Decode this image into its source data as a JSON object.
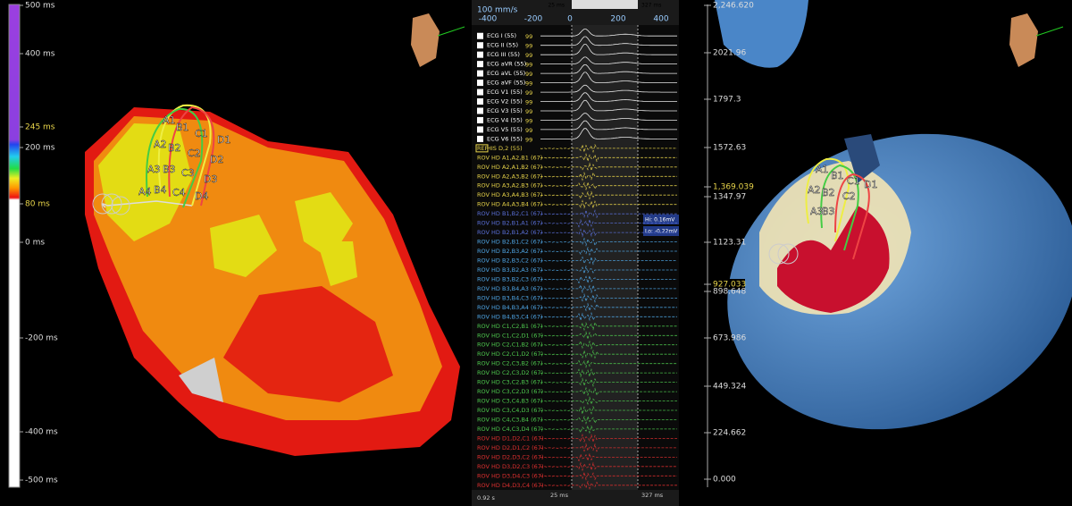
{
  "left_panel": {
    "scale_labels": [
      "500 ms",
      "400 ms",
      "245 ms",
      "200 ms",
      "80 ms",
      "0 ms",
      "-200 ms",
      "-400 ms",
      "-500 ms"
    ],
    "electrode_labels": [
      "A1",
      "B1",
      "C1",
      "D1",
      "A2",
      "B2",
      "C2",
      "D2",
      "A3",
      "B3",
      "C3",
      "D3",
      "A4",
      "B4",
      "C4",
      "D4"
    ]
  },
  "center_panel": {
    "speed": "100 mm/s",
    "time_ticks": [
      "-400",
      "-200",
      "0",
      "200",
      "400"
    ],
    "cursor_labels": [
      "25 ms",
      "327 ms"
    ],
    "footer": [
      "0.92 s",
      "25 ms",
      "327 ms"
    ],
    "annotations": [
      "Hi: 0.16mV",
      "Lo: -0.22mV"
    ],
    "ecg_value": "99",
    "channels": [
      {
        "label": "ECG I (55)",
        "color": "#ffffff"
      },
      {
        "label": "ECG II (55)",
        "color": "#ffffff"
      },
      {
        "label": "ECG III (55)",
        "color": "#ffffff"
      },
      {
        "label": "ECG aVR (55)",
        "color": "#ffffff"
      },
      {
        "label": "ECG aVL (55)",
        "color": "#ffffff"
      },
      {
        "label": "ECG aVF (55)",
        "color": "#ffffff"
      },
      {
        "label": "ECG V1 (55)",
        "color": "#ffffff"
      },
      {
        "label": "ECG V2 (55)",
        "color": "#ffffff"
      },
      {
        "label": "ECG V3 (55)",
        "color": "#ffffff"
      },
      {
        "label": "ECG V4 (55)",
        "color": "#ffffff"
      },
      {
        "label": "ECG V5 (55)",
        "color": "#ffffff"
      },
      {
        "label": "ECG V6 (55)",
        "color": "#ffffff"
      },
      {
        "label": "HIS D,2 (55)",
        "color": "#e8d44a",
        "tag": "REF"
      },
      {
        "label": "ROV HD A1,A2,B1 (67)",
        "color": "#e8d44a"
      },
      {
        "label": "ROV HD A2,A1,B2 (67)",
        "color": "#e8d44a"
      },
      {
        "label": "ROV HD A2,A3,B2 (67)",
        "color": "#e8d44a"
      },
      {
        "label": "ROV HD A3,A2,B3 (67)",
        "color": "#e8d44a"
      },
      {
        "label": "ROV HD A3,A4,B3 (67)",
        "color": "#e8d44a"
      },
      {
        "label": "ROV HD A4,A3,B4 (67)",
        "color": "#e8d44a"
      },
      {
        "label": "ROV HD B1,B2,C1 (67)",
        "color": "#5a6fd8"
      },
      {
        "label": "ROV HD B2,B1,A1 (67)",
        "color": "#5a6fd8"
      },
      {
        "label": "ROV HD B2,B1,A2 (67)",
        "color": "#5a6fd8"
      },
      {
        "label": "ROV HD B2,B1,C2 (67)",
        "color": "#4fa6e6"
      },
      {
        "label": "ROV HD B2,B3,A2 (67)",
        "color": "#4fa6e6"
      },
      {
        "label": "ROV HD B2,B3,C2 (67)",
        "color": "#4fa6e6"
      },
      {
        "label": "ROV HD B3,B2,A3 (67)",
        "color": "#4fa6e6"
      },
      {
        "label": "ROV HD B3,B2,C3 (67)",
        "color": "#4fa6e6"
      },
      {
        "label": "ROV HD B3,B4,A3 (67)",
        "color": "#4fa6e6"
      },
      {
        "label": "ROV HD B3,B4,C3 (67)",
        "color": "#4fa6e6"
      },
      {
        "label": "ROV HD B4,B3,A4 (67)",
        "color": "#4fa6e6"
      },
      {
        "label": "ROV HD B4,B3,C4 (67)",
        "color": "#4fa6e6"
      },
      {
        "label": "ROV HD C1,C2,B1 (67)",
        "color": "#4ec94e"
      },
      {
        "label": "ROV HD C1,C2,D1 (67)",
        "color": "#4ec94e"
      },
      {
        "label": "ROV HD C2,C1,B2 (67)",
        "color": "#4ec94e"
      },
      {
        "label": "ROV HD C2,C1,D2 (67)",
        "color": "#4ec94e"
      },
      {
        "label": "ROV HD C2,C3,B2 (67)",
        "color": "#4ec94e"
      },
      {
        "label": "ROV HD C2,C3,D2 (67)",
        "color": "#4ec94e"
      },
      {
        "label": "ROV HD C3,C2,B3 (67)",
        "color": "#4ec94e"
      },
      {
        "label": "ROV HD C3,C2,D3 (67)",
        "color": "#4ec94e"
      },
      {
        "label": "ROV HD C3,C4,B3 (67)",
        "color": "#4ec94e"
      },
      {
        "label": "ROV HD C3,C4,D3 (67)",
        "color": "#4ec94e"
      },
      {
        "label": "ROV HD C4,C3,B4 (67)",
        "color": "#4ec94e"
      },
      {
        "label": "ROV HD C4,C3,D4 (67)",
        "color": "#4ec94e"
      },
      {
        "label": "ROV HD D1,D2,C1 (67)",
        "color": "#e03030"
      },
      {
        "label": "ROV HD D2,D1,C2 (67)",
        "color": "#e03030"
      },
      {
        "label": "ROV HD D2,D3,C2 (67)",
        "color": "#e03030"
      },
      {
        "label": "ROV HD D3,D2,C3 (67)",
        "color": "#e03030"
      },
      {
        "label": "ROV HD D3,D4,C3 (67)",
        "color": "#e03030"
      },
      {
        "label": "ROV HD D4,D3,C4 (67)",
        "color": "#e03030"
      }
    ]
  },
  "right_panel": {
    "scale_labels": [
      "2,246.620",
      "2021.96",
      "1797.3",
      "1572.63",
      "1,369.039",
      "1347.97",
      "1123.31",
      "927.033",
      "898.648",
      "673.986",
      "449.324",
      "224.662",
      "0.000"
    ],
    "electrode_labels": [
      "A1",
      "B1",
      "C1",
      "D1",
      "A2",
      "B2",
      "C2",
      "A3",
      "B3"
    ]
  }
}
